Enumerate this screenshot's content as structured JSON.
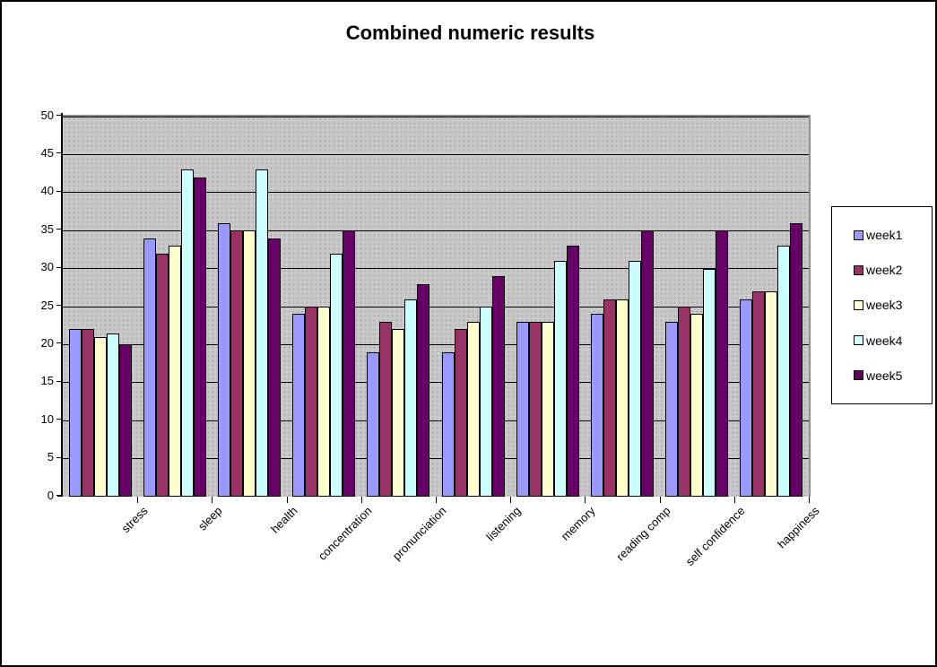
{
  "title": "Combined numeric results",
  "chart_data": {
    "type": "bar",
    "title": "Combined numeric results",
    "xlabel": "",
    "ylabel": "",
    "ylim": [
      0,
      50
    ],
    "y_ticks": [
      0,
      5,
      10,
      15,
      20,
      25,
      30,
      35,
      40,
      45,
      50
    ],
    "grid": true,
    "legend_position": "right",
    "plot_background": "#c9c9c9",
    "categories": [
      "stress",
      "sleep",
      "health",
      "concentration",
      "pronunciation",
      "listening",
      "memory",
      "reading comp",
      "self confidence",
      "happiness"
    ],
    "series": [
      {
        "name": "week1",
        "color": "#9999FF",
        "values": [
          22,
          34,
          36,
          24,
          19,
          19,
          23,
          24,
          23,
          26
        ]
      },
      {
        "name": "week2",
        "color": "#993366",
        "values": [
          22,
          32,
          35,
          25,
          23,
          22,
          23,
          26,
          25,
          27
        ]
      },
      {
        "name": "week3",
        "color": "#FFFFCC",
        "values": [
          21,
          33,
          35,
          25,
          22,
          23,
          23,
          26,
          24,
          27
        ]
      },
      {
        "name": "week4",
        "color": "#CCFFFF",
        "values": [
          21.5,
          43,
          43,
          32,
          26,
          25,
          31,
          31,
          30,
          33
        ]
      },
      {
        "name": "week5",
        "color": "#660066",
        "values": [
          20,
          42,
          34,
          35,
          28,
          29,
          33,
          35,
          35,
          36
        ]
      }
    ]
  }
}
